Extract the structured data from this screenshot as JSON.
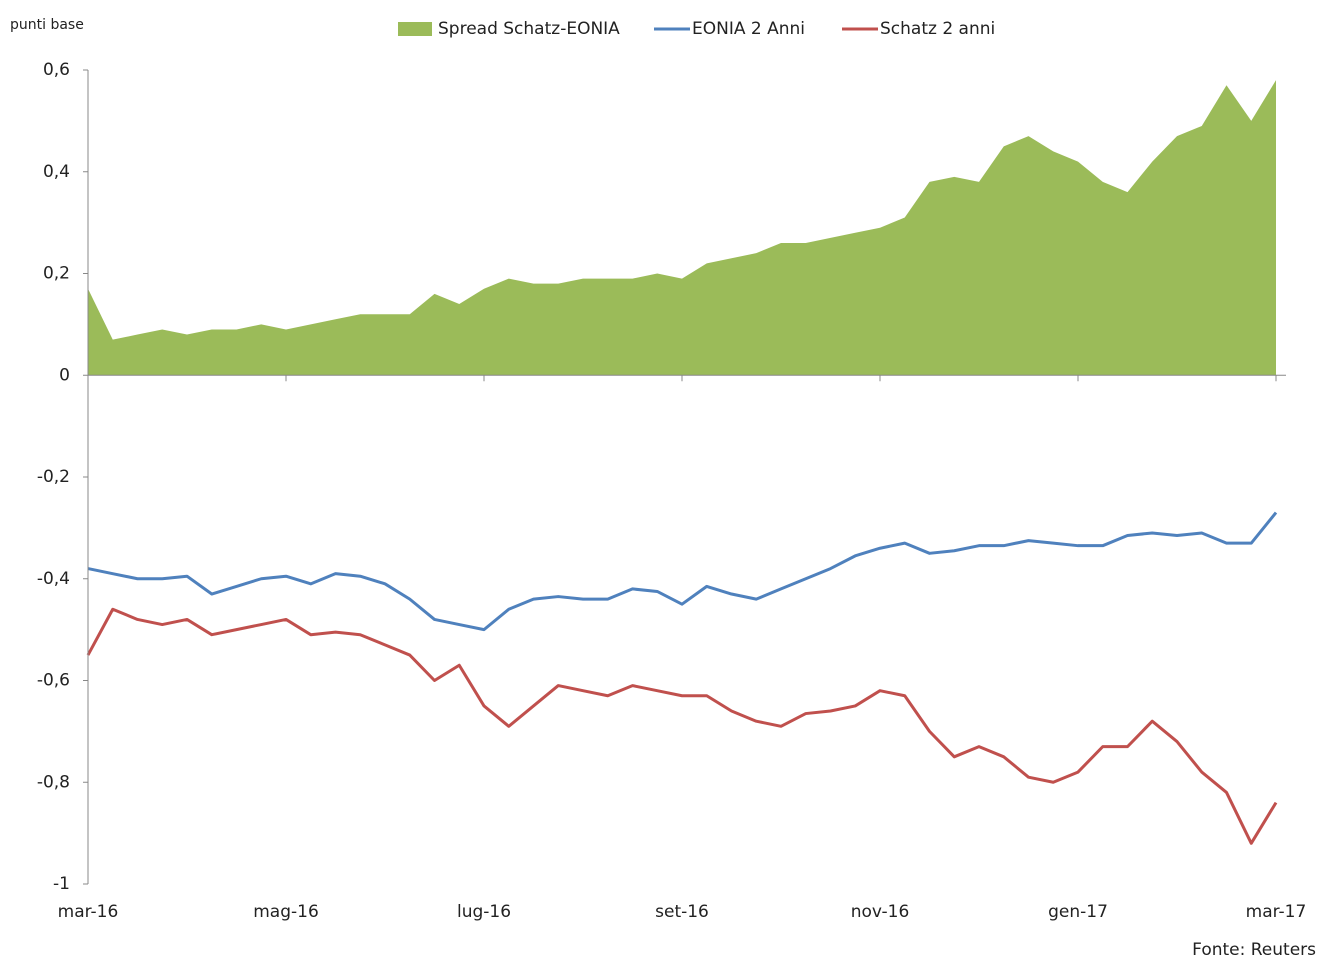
{
  "chart_data": {
    "type": "line",
    "y_label": "punti base",
    "source": "Fonte: Reuters",
    "categories": [
      "mar-16",
      null,
      null,
      null,
      null,
      null,
      null,
      null,
      "mag-16",
      null,
      null,
      null,
      null,
      null,
      null,
      null,
      "lug-16",
      null,
      null,
      null,
      null,
      null,
      null,
      null,
      "set-16",
      null,
      null,
      null,
      null,
      null,
      null,
      null,
      "nov-16",
      null,
      null,
      null,
      null,
      null,
      null,
      null,
      "gen-17",
      null,
      null,
      null,
      null,
      null,
      null,
      null,
      "mar-17"
    ],
    "series": [
      {
        "name": "Spread Schatz-EONIA",
        "kind": "area",
        "color": "#9bbb59",
        "values": [
          0.17,
          0.07,
          0.08,
          0.09,
          0.08,
          0.09,
          0.09,
          0.1,
          0.09,
          0.1,
          0.11,
          0.12,
          0.12,
          0.12,
          0.16,
          0.14,
          0.17,
          0.19,
          0.18,
          0.18,
          0.19,
          0.19,
          0.19,
          0.2,
          0.19,
          0.22,
          0.23,
          0.24,
          0.26,
          0.26,
          0.27,
          0.28,
          0.29,
          0.31,
          0.38,
          0.39,
          0.38,
          0.45,
          0.47,
          0.44,
          0.42,
          0.38,
          0.36,
          0.42,
          0.47,
          0.49,
          0.57,
          0.5,
          0.58
        ]
      },
      {
        "name": "EONIA 2 Anni",
        "kind": "line",
        "color": "#4f81bd",
        "values": [
          -0.38,
          -0.39,
          -0.4,
          -0.4,
          -0.395,
          -0.43,
          -0.415,
          -0.4,
          -0.395,
          -0.41,
          -0.39,
          -0.395,
          -0.41,
          -0.44,
          -0.48,
          -0.49,
          -0.5,
          -0.46,
          -0.44,
          -0.435,
          -0.44,
          -0.44,
          -0.42,
          -0.425,
          -0.45,
          -0.415,
          -0.43,
          -0.44,
          -0.42,
          -0.4,
          -0.38,
          -0.355,
          -0.34,
          -0.33,
          -0.35,
          -0.345,
          -0.335,
          -0.335,
          -0.325,
          -0.33,
          -0.335,
          -0.335,
          -0.315,
          -0.31,
          -0.315,
          -0.31,
          -0.33,
          -0.33,
          -0.27
        ]
      },
      {
        "name": "Schatz 2 anni",
        "kind": "line",
        "color": "#c0504d",
        "values": [
          -0.55,
          -0.46,
          -0.48,
          -0.49,
          -0.48,
          -0.51,
          -0.5,
          -0.49,
          -0.48,
          -0.51,
          -0.505,
          -0.51,
          -0.53,
          -0.55,
          -0.6,
          -0.57,
          -0.65,
          -0.69,
          -0.65,
          -0.61,
          -0.62,
          -0.63,
          -0.61,
          -0.62,
          -0.63,
          -0.63,
          -0.66,
          -0.68,
          -0.69,
          -0.665,
          -0.66,
          -0.65,
          -0.62,
          -0.63,
          -0.7,
          -0.75,
          -0.73,
          -0.75,
          -0.79,
          -0.8,
          -0.78,
          -0.73,
          -0.73,
          -0.68,
          -0.72,
          -0.78,
          -0.82,
          -0.92,
          -0.84
        ]
      }
    ],
    "ylim": [
      -1,
      0.6
    ],
    "yticks": [
      -1,
      {
        "value": -0.8,
        "label": "-0,8"
      },
      {
        "value": -0.6,
        "label": "-0,6"
      },
      {
        "value": -0.4,
        "label": "-0,4"
      },
      {
        "value": -0.2,
        "label": "-0,2"
      },
      0,
      {
        "value": 0.2,
        "label": "0,2"
      },
      {
        "value": 0.4,
        "label": "0,4"
      },
      {
        "value": 0.6,
        "label": "0,6"
      }
    ],
    "legend": "top"
  }
}
